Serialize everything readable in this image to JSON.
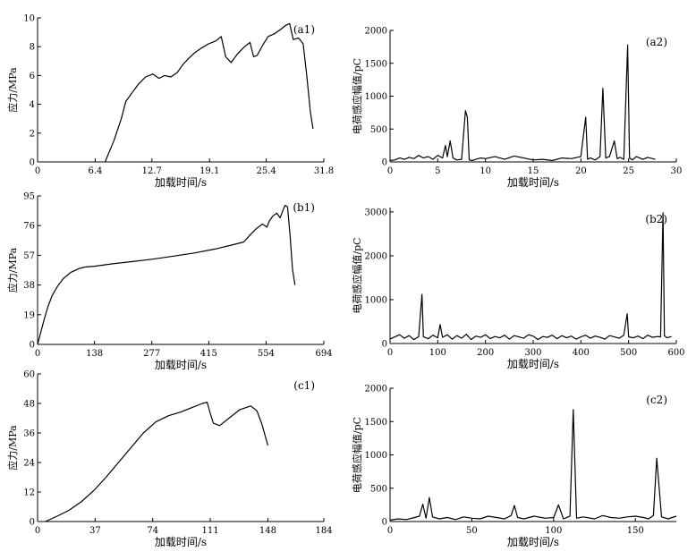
{
  "chart_data": [
    {
      "type": "line",
      "panel_label": "(a1)",
      "xlabel": "加载时间/s",
      "ylabel": "应力/MPa",
      "xlim": [
        0,
        31.8
      ],
      "ylim": [
        0,
        10
      ],
      "xticks": [
        0,
        6.4,
        12.7,
        19.1,
        25.4,
        31.8
      ],
      "xtick_labels": [
        "0",
        "6.4",
        "12.7",
        "19.1",
        "25.4",
        "31.8"
      ],
      "yticks": [
        0,
        2,
        4,
        6,
        8,
        10
      ],
      "ytick_labels": [
        "0",
        "2",
        "4",
        "6",
        "8",
        "10"
      ],
      "grid": false,
      "series": [
        {
          "x": [
            7.5,
            8.5,
            9.3,
            9.8,
            10.5,
            11.2,
            12.0,
            12.8,
            13.5,
            14.1,
            14.8,
            15.5,
            16.2,
            16.8,
            17.5,
            18.2,
            19.0,
            19.8,
            20.4,
            20.9,
            21.5,
            22.2,
            23.0,
            23.6,
            24.0,
            24.4,
            25.0,
            25.6,
            26.3,
            27.0,
            27.6,
            28.0,
            28.4,
            29.0,
            29.5,
            29.9,
            30.3,
            30.6
          ],
          "y": [
            0.0,
            1.5,
            3.0,
            4.2,
            4.8,
            5.4,
            5.9,
            6.1,
            5.8,
            6.0,
            5.9,
            6.2,
            6.8,
            7.2,
            7.6,
            7.9,
            8.2,
            8.4,
            8.7,
            7.3,
            6.9,
            7.5,
            8.0,
            8.3,
            7.3,
            7.4,
            8.1,
            8.7,
            8.9,
            9.2,
            9.5,
            9.6,
            8.5,
            8.6,
            8.2,
            6.0,
            3.5,
            2.3
          ]
        }
      ]
    },
    {
      "type": "line",
      "panel_label": "(a2)",
      "xlabel": "加载时间/s",
      "ylabel": "电荷感应幅值/pC",
      "xlim": [
        0,
        30
      ],
      "ylim": [
        0,
        2000
      ],
      "xticks": [
        0,
        5,
        10,
        15,
        20,
        25,
        30
      ],
      "xtick_labels": [
        "0",
        "5",
        "10",
        "15",
        "20",
        "25",
        "30"
      ],
      "yticks": [
        0,
        500,
        1000,
        1500,
        2000
      ],
      "ytick_labels": [
        "0",
        "500",
        "1000",
        "1500",
        "2000"
      ],
      "grid": false,
      "series": [
        {
          "x": [
            0.0,
            0.5,
            1.0,
            1.5,
            2.0,
            2.5,
            3.0,
            3.5,
            4.0,
            4.5,
            5.0,
            5.5,
            5.8,
            6.0,
            6.3,
            6.6,
            7.0,
            7.5,
            7.9,
            8.1,
            8.3,
            8.6,
            9.0,
            9.5,
            10,
            11,
            12,
            13,
            14,
            15,
            16,
            17,
            18,
            19,
            20,
            20.5,
            20.7,
            21.0,
            21.5,
            22.0,
            22.3,
            22.6,
            23.0,
            23.5,
            23.8,
            24.1,
            24.5,
            24.9,
            25.1,
            25.4,
            25.8,
            26.5,
            27.0,
            27.8
          ],
          "y": [
            20,
            30,
            60,
            40,
            70,
            50,
            100,
            60,
            80,
            40,
            100,
            60,
            250,
            80,
            320,
            60,
            30,
            40,
            780,
            680,
            30,
            20,
            40,
            60,
            50,
            80,
            40,
            90,
            60,
            30,
            40,
            20,
            60,
            50,
            80,
            680,
            40,
            60,
            30,
            80,
            1120,
            60,
            80,
            320,
            50,
            70,
            40,
            1780,
            60,
            30,
            80,
            40,
            70,
            40
          ]
        }
      ]
    },
    {
      "type": "line",
      "panel_label": "(b1)",
      "xlabel": "加载时间/s",
      "ylabel": "应力/MPa",
      "xlim": [
        0,
        694
      ],
      "ylim": [
        0,
        95
      ],
      "xticks": [
        0,
        138,
        277,
        415,
        554,
        694
      ],
      "xtick_labels": [
        "0",
        "138",
        "277",
        "415",
        "554",
        "694"
      ],
      "yticks": [
        0,
        19,
        38,
        57,
        76,
        95
      ],
      "ytick_labels": [
        "0",
        "19",
        "38",
        "57",
        "76",
        "95"
      ],
      "grid": false,
      "series": [
        {
          "x": [
            0,
            8,
            16,
            25,
            35,
            48,
            62,
            80,
            100,
            115,
            138,
            180,
            230,
            277,
            330,
            380,
            430,
            470,
            500,
            515,
            530,
            545,
            556,
            562,
            570,
            580,
            588,
            595,
            600,
            606,
            612,
            618,
            624
          ],
          "y": [
            0,
            8,
            16,
            24,
            31,
            37,
            42,
            46,
            48.5,
            49.5,
            50,
            51.5,
            53,
            54.5,
            56.5,
            58.5,
            61,
            63.5,
            65.5,
            70,
            74,
            77,
            75,
            79,
            82,
            84,
            81,
            86,
            89,
            88,
            70,
            48,
            38
          ]
        }
      ]
    },
    {
      "type": "line",
      "panel_label": "(b2)",
      "xlabel": "加载时间/s",
      "ylabel": "电荷感应幅值/pC",
      "xlim": [
        0,
        600
      ],
      "ylim": [
        0,
        3100
      ],
      "xticks": [
        0,
        100,
        200,
        300,
        400,
        500,
        600
      ],
      "xtick_labels": [
        "0",
        "100",
        "200",
        "300",
        "400",
        "500",
        "600"
      ],
      "yticks": [
        0,
        1000,
        2000,
        3000
      ],
      "ytick_labels": [
        "0",
        "1000",
        "2000",
        "3000"
      ],
      "grid": false,
      "series": [
        {
          "x": [
            0,
            10,
            20,
            30,
            40,
            50,
            60,
            67,
            70,
            80,
            90,
            100,
            105,
            110,
            120,
            130,
            140,
            150,
            160,
            170,
            180,
            190,
            200,
            210,
            220,
            230,
            240,
            250,
            260,
            270,
            280,
            290,
            300,
            310,
            320,
            330,
            340,
            350,
            360,
            370,
            380,
            390,
            400,
            410,
            420,
            430,
            440,
            450,
            460,
            470,
            480,
            490,
            497,
            500,
            510,
            520,
            530,
            540,
            550,
            560,
            567,
            572,
            575,
            580,
            590
          ],
          "y": [
            100,
            150,
            200,
            120,
            180,
            90,
            160,
            1120,
            150,
            110,
            190,
            130,
            430,
            140,
            200,
            100,
            180,
            120,
            210,
            90,
            170,
            140,
            200,
            110,
            160,
            130,
            190,
            100,
            180,
            150,
            120,
            200,
            170,
            90,
            160,
            140,
            190,
            110,
            180,
            130,
            170,
            100,
            150,
            190,
            120,
            170,
            140,
            100,
            180,
            150,
            120,
            190,
            680,
            150,
            130,
            170,
            110,
            190,
            140,
            160,
            150,
            2980,
            180,
            130,
            160
          ]
        }
      ]
    },
    {
      "type": "line",
      "panel_label": "(c1)",
      "xlabel": "加载时间/s",
      "ylabel": "应力/MPa",
      "xlim": [
        0,
        184
      ],
      "ylim": [
        0,
        60
      ],
      "xticks": [
        0,
        37,
        74,
        111,
        148,
        184
      ],
      "xtick_labels": [
        "0",
        "37",
        "74",
        "111",
        "148",
        "184"
      ],
      "yticks": [
        0,
        12,
        24,
        36,
        48,
        60
      ],
      "ytick_labels": [
        "0",
        "12",
        "24",
        "36",
        "48",
        "60"
      ],
      "grid": false,
      "series": [
        {
          "x": [
            5,
            12,
            20,
            28,
            36,
            44,
            52,
            60,
            68,
            76,
            84,
            92,
            100,
            106,
            109,
            111,
            113,
            117,
            123,
            130,
            137,
            141,
            144,
            148
          ],
          "y": [
            0,
            2,
            4.5,
            8,
            12.5,
            18,
            24,
            30,
            36,
            40.5,
            43,
            44.5,
            46.5,
            48,
            48.5,
            44,
            40,
            39,
            42,
            45.5,
            47,
            45,
            40,
            31
          ]
        }
      ]
    },
    {
      "type": "line",
      "panel_label": "(c2)",
      "xlabel": "加载时间/s",
      "ylabel": "电荷感应幅值/pC",
      "xlim": [
        0,
        175
      ],
      "ylim": [
        0,
        2000
      ],
      "xticks": [
        0,
        50,
        100,
        150
      ],
      "xtick_labels": [
        "0",
        "50",
        "100",
        "150"
      ],
      "yticks": [
        0,
        500,
        1000,
        1500,
        2000
      ],
      "ytick_labels": [
        "0",
        "500",
        "1000",
        "1500",
        "2000"
      ],
      "grid": false,
      "series": [
        {
          "x": [
            0,
            5,
            10,
            15,
            18,
            20,
            22,
            24,
            26,
            30,
            35,
            40,
            45,
            50,
            55,
            60,
            65,
            70,
            74,
            76,
            78,
            82,
            88,
            95,
            100,
            103,
            106,
            110,
            112,
            114,
            118,
            125,
            130,
            135,
            140,
            145,
            150,
            155,
            158,
            161,
            163,
            166,
            170,
            175
          ],
          "y": [
            20,
            40,
            30,
            60,
            80,
            260,
            50,
            360,
            70,
            40,
            60,
            30,
            70,
            50,
            40,
            80,
            60,
            40,
            90,
            240,
            60,
            40,
            80,
            50,
            60,
            250,
            40,
            80,
            1680,
            50,
            70,
            40,
            90,
            60,
            50,
            70,
            80,
            60,
            40,
            90,
            950,
            70,
            40,
            80
          ]
        }
      ]
    }
  ]
}
